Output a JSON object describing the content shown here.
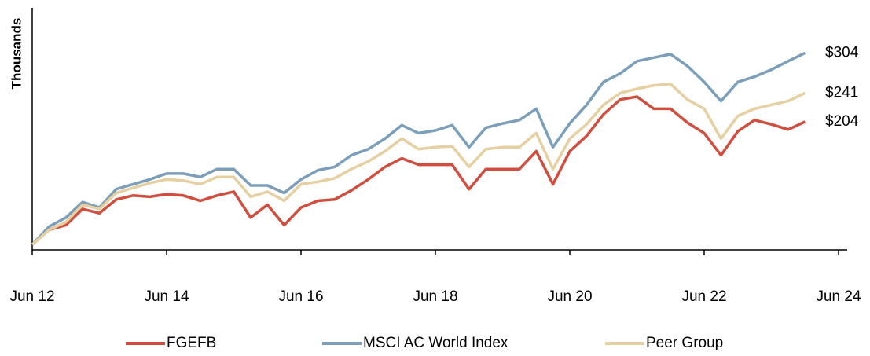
{
  "chart_data": {
    "type": "line",
    "y_label": "Thousands",
    "log_scale": true,
    "ylim": [
      97,
      395
    ],
    "xlim": [
      "Jun 12",
      "Jun 24"
    ],
    "xticks": [
      "Jun 12",
      "Jun 14",
      "Jun 16",
      "Jun 18",
      "Jun 20",
      "Jun 22",
      "Jun 24"
    ],
    "x": [
      "Jun 12",
      "Sep 12",
      "Dec 12",
      "Mar 13",
      "Jun 13",
      "Sep 13",
      "Dec 13",
      "Mar 14",
      "Jun 14",
      "Sep 14",
      "Dec 14",
      "Mar 15",
      "Jun 15",
      "Sep 15",
      "Dec 15",
      "Mar 16",
      "Jun 16",
      "Sep 16",
      "Dec 16",
      "Mar 17",
      "Jun 17",
      "Sep 17",
      "Dec 17",
      "Mar 18",
      "Jun 18",
      "Sep 18",
      "Dec 18",
      "Mar 19",
      "Jun 19",
      "Sep 19",
      "Dec 19",
      "Mar 20",
      "Jun 20",
      "Sep 20",
      "Dec 20",
      "Mar 21",
      "Jun 21",
      "Sep 21",
      "Dec 21",
      "Mar 22",
      "Jun 22",
      "Sep 22",
      "Dec 22",
      "Mar 23",
      "Jun 23",
      "Sep 23",
      "Dec 23"
    ],
    "series": [
      {
        "name": "FGEFB",
        "color": "#d24d3e",
        "values": [
          100,
          109,
          112,
          123,
          120,
          130,
          133,
          132,
          134,
          133,
          129,
          133,
          136,
          117,
          126,
          112,
          124,
          129,
          130,
          137,
          146,
          157,
          165,
          159,
          159,
          159,
          138,
          155,
          155,
          155,
          172,
          142,
          172,
          188,
          213,
          232,
          236,
          220,
          220,
          203,
          191,
          168,
          193,
          206,
          201,
          195,
          204
        ],
        "value_labels": [
          null,
          null,
          null,
          null,
          null,
          null,
          null,
          null,
          null,
          null,
          null,
          null,
          null,
          null,
          null,
          null,
          null,
          null,
          null,
          null,
          null,
          null,
          null,
          null,
          null,
          null,
          null,
          null,
          null,
          null,
          null,
          null,
          null,
          null,
          null,
          null,
          null,
          null,
          null,
          null,
          null,
          null,
          null,
          null,
          null,
          null,
          "$204"
        ]
      },
      {
        "name": "MSCI AC World Index",
        "color": "#7b9fba",
        "values": [
          100,
          111,
          117,
          128,
          124,
          138,
          142,
          146,
          151,
          151,
          148,
          155,
          155,
          141,
          141,
          135,
          146,
          154,
          157,
          168,
          174,
          185,
          200,
          191,
          194,
          200,
          176,
          197,
          202,
          206,
          220,
          176,
          202,
          225,
          257,
          270,
          290,
          296,
          302,
          282,
          257,
          230,
          257,
          265,
          276,
          290,
          304
        ],
        "value_labels": [
          null,
          null,
          null,
          null,
          null,
          null,
          null,
          null,
          null,
          null,
          null,
          null,
          null,
          null,
          null,
          null,
          null,
          null,
          null,
          null,
          null,
          null,
          null,
          null,
          null,
          null,
          null,
          null,
          null,
          null,
          null,
          null,
          null,
          null,
          null,
          null,
          null,
          null,
          null,
          null,
          null,
          null,
          null,
          null,
          null,
          null,
          "$304"
        ]
      },
      {
        "name": "Peer Group",
        "color": "#e6d0a2",
        "values": [
          100,
          109,
          114,
          126,
          123,
          135,
          139,
          143,
          146,
          145,
          142,
          148,
          148,
          132,
          136,
          129,
          142,
          144,
          147,
          155,
          162,
          172,
          185,
          174,
          176,
          177,
          157,
          174,
          176,
          176,
          191,
          155,
          185,
          201,
          225,
          241,
          247,
          252,
          254,
          232,
          220,
          185,
          211,
          220,
          225,
          230,
          241
        ],
        "value_labels": [
          null,
          null,
          null,
          null,
          null,
          null,
          null,
          null,
          null,
          null,
          null,
          null,
          null,
          null,
          null,
          null,
          null,
          null,
          null,
          null,
          null,
          null,
          null,
          null,
          null,
          null,
          null,
          null,
          null,
          null,
          null,
          null,
          null,
          null,
          null,
          null,
          null,
          null,
          null,
          null,
          null,
          null,
          null,
          null,
          null,
          null,
          "$241"
        ]
      }
    ]
  }
}
